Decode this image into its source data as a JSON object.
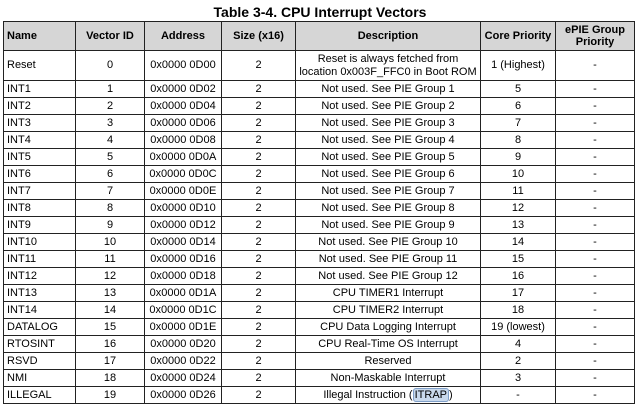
{
  "title": "Table 3-4. CPU Interrupt Vectors",
  "headers": [
    "Name",
    "Vector ID",
    "Address",
    "Size (x16)",
    "Description",
    "Core Priority",
    "ePIE Group Priority"
  ],
  "rows": [
    {
      "name": "Reset",
      "vector_id": "0",
      "address": "0x0000 0D00",
      "size": "2",
      "description": "Reset is always fetched from location 0x003F_FFC0 in Boot ROM",
      "core_priority": "1 (Highest)",
      "epie_priority": "-"
    },
    {
      "name": "INT1",
      "vector_id": "1",
      "address": "0x0000 0D02",
      "size": "2",
      "description": "Not used. See PIE Group 1",
      "core_priority": "5",
      "epie_priority": "-"
    },
    {
      "name": "INT2",
      "vector_id": "2",
      "address": "0x0000 0D04",
      "size": "2",
      "description": "Not used. See PIE Group 2",
      "core_priority": "6",
      "epie_priority": "-"
    },
    {
      "name": "INT3",
      "vector_id": "3",
      "address": "0x0000 0D06",
      "size": "2",
      "description": "Not used. See PIE Group 3",
      "core_priority": "7",
      "epie_priority": "-"
    },
    {
      "name": "INT4",
      "vector_id": "4",
      "address": "0x0000 0D08",
      "size": "2",
      "description": "Not used. See PIE Group 4",
      "core_priority": "8",
      "epie_priority": "-"
    },
    {
      "name": "INT5",
      "vector_id": "5",
      "address": "0x0000 0D0A",
      "size": "2",
      "description": "Not used. See PIE Group 5",
      "core_priority": "9",
      "epie_priority": "-"
    },
    {
      "name": "INT6",
      "vector_id": "6",
      "address": "0x0000 0D0C",
      "size": "2",
      "description": "Not used. See PIE Group 6",
      "core_priority": "10",
      "epie_priority": "-"
    },
    {
      "name": "INT7",
      "vector_id": "7",
      "address": "0x0000 0D0E",
      "size": "2",
      "description": "Not used. See PIE Group 7",
      "core_priority": "11",
      "epie_priority": "-"
    },
    {
      "name": "INT8",
      "vector_id": "8",
      "address": "0x0000 0D10",
      "size": "2",
      "description": "Not used. See PIE Group 8",
      "core_priority": "12",
      "epie_priority": "-"
    },
    {
      "name": "INT9",
      "vector_id": "9",
      "address": "0x0000 0D12",
      "size": "2",
      "description": "Not used. See PIE Group 9",
      "core_priority": "13",
      "epie_priority": "-"
    },
    {
      "name": "INT10",
      "vector_id": "10",
      "address": "0x0000 0D14",
      "size": "2",
      "description": "Not used. See PIE Group 10",
      "core_priority": "14",
      "epie_priority": "-"
    },
    {
      "name": "INT11",
      "vector_id": "11",
      "address": "0x0000 0D16",
      "size": "2",
      "description": "Not used. See PIE Group 11",
      "core_priority": "15",
      "epie_priority": "-"
    },
    {
      "name": "INT12",
      "vector_id": "12",
      "address": "0x0000 0D18",
      "size": "2",
      "description": "Not used. See PIE Group 12",
      "core_priority": "16",
      "epie_priority": "-"
    },
    {
      "name": "INT13",
      "vector_id": "13",
      "address": "0x0000 0D1A",
      "size": "2",
      "description": "CPU TIMER1 Interrupt",
      "core_priority": "17",
      "epie_priority": "-"
    },
    {
      "name": "INT14",
      "vector_id": "14",
      "address": "0x0000 0D1C",
      "size": "2",
      "description": "CPU TIMER2 Interrupt",
      "core_priority": "18",
      "epie_priority": "-"
    },
    {
      "name": "DATALOG",
      "vector_id": "15",
      "address": "0x0000 0D1E",
      "size": "2",
      "description": "CPU Data Logging Interrupt",
      "core_priority": "19 (lowest)",
      "epie_priority": "-"
    },
    {
      "name": "RTOSINT",
      "vector_id": "16",
      "address": "0x0000 0D20",
      "size": "2",
      "description": "CPU Real-Time OS Interrupt",
      "core_priority": "4",
      "epie_priority": "-"
    },
    {
      "name": "RSVD",
      "vector_id": "17",
      "address": "0x0000 0D22",
      "size": "2",
      "description": "Reserved",
      "core_priority": "2",
      "epie_priority": "-"
    },
    {
      "name": "NMI",
      "vector_id": "18",
      "address": "0x0000 0D24",
      "size": "2",
      "description": "Non-Maskable Interrupt",
      "core_priority": "3",
      "epie_priority": "-"
    },
    {
      "name": "ILLEGAL",
      "vector_id": "19",
      "address": "0x0000 0D26",
      "size": "2",
      "description": "Illegal Instruction (",
      "description_highlight": "ITRAP",
      "description_suffix": ")",
      "core_priority": "-",
      "epie_priority": "-"
    }
  ],
  "highlight_color": "#c9d9ec"
}
